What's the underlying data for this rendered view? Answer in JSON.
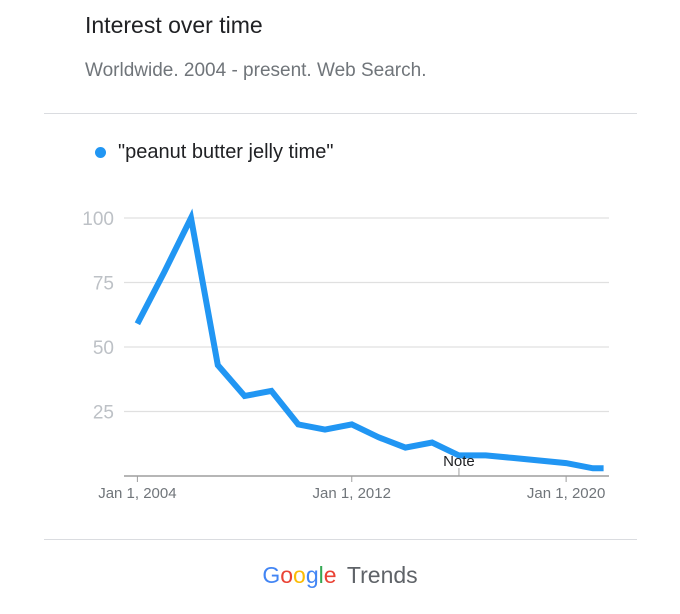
{
  "header": {
    "title": "Interest over time",
    "subtitle": "Worldwide. 2004 - present. Web Search."
  },
  "legend": {
    "label": "\"peanut butter jelly time\""
  },
  "colors": {
    "series": "#2196f3",
    "grid": "#e0e0e0",
    "axis": "#9e9e9e",
    "google_blue": "#4285F4",
    "google_red": "#EA4335",
    "google_yellow": "#FBBC05",
    "google_green": "#34A853"
  },
  "chart_data": {
    "type": "line",
    "title": "",
    "xlabel": "",
    "ylabel": "",
    "ylim": [
      0,
      100
    ],
    "xlim": [
      2003.5,
      2021.6
    ],
    "yticks": [
      25,
      50,
      75,
      100
    ],
    "grid": true,
    "legend_position": "top-left",
    "xticks": [
      {
        "x": 2004,
        "label": "Jan 1, 2004"
      },
      {
        "x": 2012,
        "label": "Jan 1, 2012"
      },
      {
        "x": 2020,
        "label": "Jan 1, 2020"
      }
    ],
    "annotation": {
      "x": 2016,
      "label": "Note"
    },
    "series": [
      {
        "name": "\"peanut butter jelly time\"",
        "x": [
          2004,
          2005,
          2006,
          2007,
          2008,
          2009,
          2010,
          2011,
          2012,
          2013,
          2014,
          2015,
          2016,
          2017,
          2018,
          2019,
          2020,
          2021,
          2021.4
        ],
        "y": [
          59,
          79,
          100,
          43,
          31,
          33,
          20,
          18,
          20,
          15,
          11,
          13,
          8,
          8,
          7,
          6,
          5,
          3,
          3
        ]
      }
    ]
  },
  "footer": {
    "brand_letters": [
      "G",
      "o",
      "o",
      "g",
      "l",
      "e"
    ],
    "product": "Trends"
  }
}
